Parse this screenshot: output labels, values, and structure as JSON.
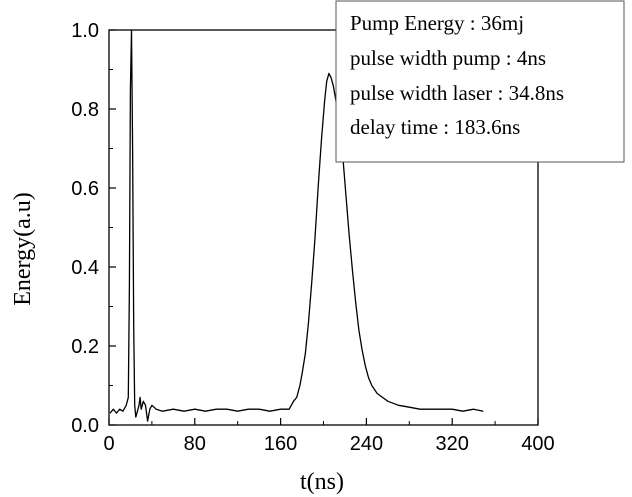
{
  "chart_data": {
    "type": "line",
    "xlabel": "t(ns)",
    "ylabel": "Energy(a.u)",
    "xlim": [
      0,
      400
    ],
    "ylim": [
      0,
      1.0
    ],
    "x_ticks": [
      "0",
      "80",
      "160",
      "240",
      "320",
      "400"
    ],
    "y_ticks": [
      "0.0",
      "0.2",
      "0.4",
      "0.6",
      "0.8",
      "1.0"
    ],
    "grid": false,
    "annotation_lines": [
      "Pump Energy : 36mj",
      "pulse width pump : 4ns",
      "pulse width laser : 34.8ns",
      "delay time : 183.6ns"
    ],
    "series": [
      {
        "x": [
          1,
          4,
          7,
          10,
          13,
          16,
          18,
          19,
          20,
          21,
          22,
          23,
          24,
          25,
          26,
          27,
          28,
          29,
          30,
          32,
          34,
          36,
          38,
          40,
          44,
          50,
          60,
          70,
          80,
          90,
          100,
          110,
          120,
          130,
          140,
          150,
          160,
          165,
          168,
          170,
          172,
          175,
          178,
          180,
          183,
          186,
          189,
          192,
          195,
          198,
          201,
          203,
          205,
          207,
          209,
          211,
          213,
          215,
          218,
          221,
          224,
          227,
          230,
          233,
          236,
          239,
          242,
          245,
          250,
          255,
          260,
          270,
          280,
          290,
          300,
          310,
          320,
          330,
          340,
          349
        ],
        "values": [
          0.03,
          0.04,
          0.03,
          0.04,
          0.035,
          0.05,
          0.07,
          0.35,
          0.85,
          1.0,
          0.7,
          0.25,
          0.05,
          0.02,
          0.03,
          0.04,
          0.05,
          0.07,
          0.04,
          0.06,
          0.05,
          0.01,
          0.04,
          0.05,
          0.04,
          0.035,
          0.04,
          0.035,
          0.04,
          0.035,
          0.04,
          0.04,
          0.035,
          0.04,
          0.04,
          0.035,
          0.04,
          0.04,
          0.04,
          0.05,
          0.06,
          0.07,
          0.1,
          0.13,
          0.18,
          0.26,
          0.36,
          0.47,
          0.6,
          0.72,
          0.82,
          0.87,
          0.89,
          0.88,
          0.86,
          0.83,
          0.8,
          0.76,
          0.68,
          0.58,
          0.48,
          0.39,
          0.31,
          0.24,
          0.19,
          0.15,
          0.12,
          0.1,
          0.08,
          0.07,
          0.06,
          0.05,
          0.045,
          0.04,
          0.04,
          0.04,
          0.04,
          0.035,
          0.04,
          0.035
        ]
      }
    ]
  }
}
